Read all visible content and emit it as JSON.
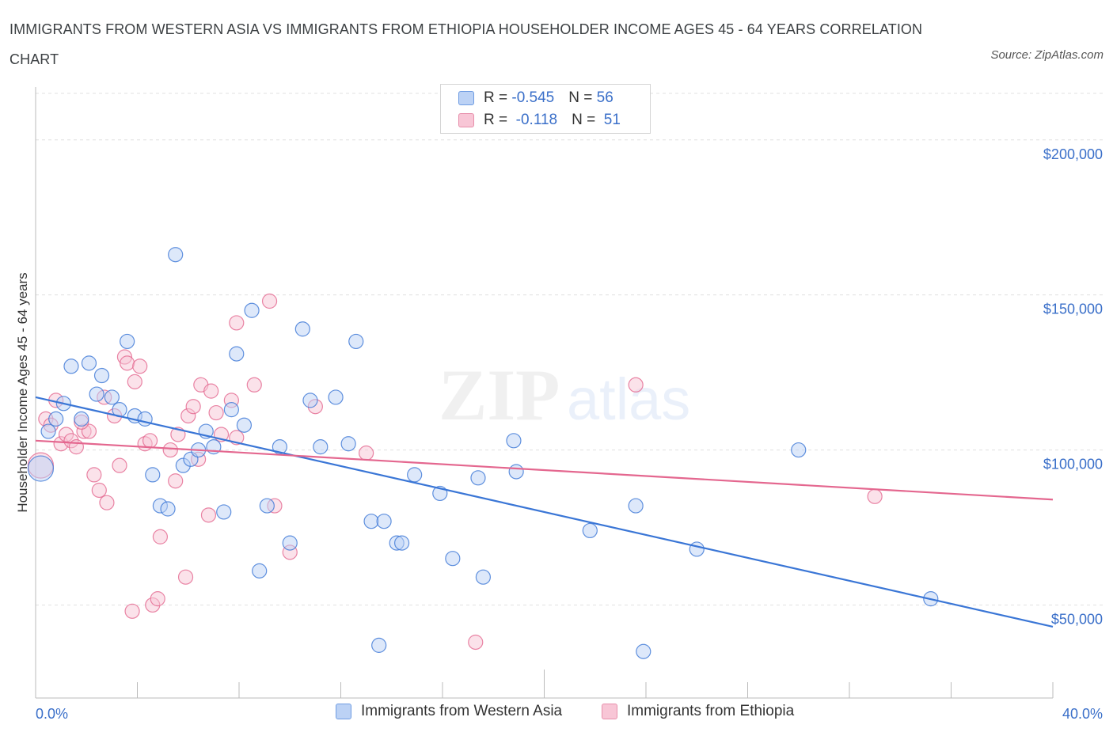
{
  "title": "IMMIGRANTS FROM WESTERN ASIA VS IMMIGRANTS FROM ETHIOPIA HOUSEHOLDER INCOME AGES 45 - 64 YEARS CORRELATION CHART",
  "source": "Source: ZipAtlas.com",
  "legend": {
    "rows": [
      {
        "r_label": "R = ",
        "r_value": "-0.545",
        "n_label": "N = ",
        "n_value": "56"
      },
      {
        "r_label": "R = ",
        "r_value": " -0.118",
        "n_label": "N = ",
        "n_value": " 51"
      }
    ]
  },
  "colors": {
    "blue": "#3a76d6",
    "blue_fill": "#bcd2f5",
    "pink": "#e4678f",
    "pink_fill": "#f8c6d6",
    "axis_text": "#3a6fc9"
  },
  "chart_data": {
    "type": "scatter",
    "xlabel": "",
    "ylabel": "Householder Income Ages 45 - 64 years",
    "xlim": [
      0,
      40
    ],
    "ylim": [
      20000,
      215000
    ],
    "x_tick_labels": [
      "0.0%",
      "40.0%"
    ],
    "y_ticks": [
      {
        "value": 50000,
        "label": "$50,000"
      },
      {
        "value": 100000,
        "label": "$100,000"
      },
      {
        "value": 150000,
        "label": "$150,000"
      },
      {
        "value": 200000,
        "label": "$200,000"
      }
    ],
    "grid": true,
    "legend_position": "bottom",
    "series": [
      {
        "name": "Immigrants from Western Asia",
        "color": "#3a76d6",
        "trend": {
          "x": [
            0,
            40
          ],
          "y": [
            117000,
            43000
          ]
        },
        "points": [
          [
            0.2,
            94000
          ],
          [
            0.5,
            106000
          ],
          [
            0.8,
            110000
          ],
          [
            1.1,
            115000
          ],
          [
            1.4,
            127000
          ],
          [
            1.8,
            110000
          ],
          [
            2.1,
            128000
          ],
          [
            2.4,
            118000
          ],
          [
            2.6,
            124000
          ],
          [
            3.0,
            117000
          ],
          [
            3.3,
            113000
          ],
          [
            3.6,
            135000
          ],
          [
            3.9,
            111000
          ],
          [
            4.3,
            110000
          ],
          [
            4.6,
            92000
          ],
          [
            4.9,
            82000
          ],
          [
            5.2,
            81000
          ],
          [
            5.5,
            163000
          ],
          [
            5.8,
            95000
          ],
          [
            6.1,
            97000
          ],
          [
            6.4,
            100000
          ],
          [
            6.7,
            106000
          ],
          [
            7.0,
            101000
          ],
          [
            7.4,
            80000
          ],
          [
            7.7,
            113000
          ],
          [
            7.9,
            131000
          ],
          [
            8.2,
            108000
          ],
          [
            8.5,
            145000
          ],
          [
            8.8,
            61000
          ],
          [
            9.1,
            82000
          ],
          [
            9.6,
            101000
          ],
          [
            10.0,
            70000
          ],
          [
            10.5,
            139000
          ],
          [
            10.8,
            116000
          ],
          [
            11.2,
            101000
          ],
          [
            11.8,
            117000
          ],
          [
            12.3,
            102000
          ],
          [
            12.6,
            135000
          ],
          [
            13.2,
            77000
          ],
          [
            13.5,
            37000
          ],
          [
            13.7,
            77000
          ],
          [
            14.2,
            70000
          ],
          [
            14.4,
            70000
          ],
          [
            14.9,
            92000
          ],
          [
            15.9,
            86000
          ],
          [
            16.4,
            65000
          ],
          [
            17.4,
            91000
          ],
          [
            17.6,
            59000
          ],
          [
            18.8,
            103000
          ],
          [
            18.9,
            93000
          ],
          [
            21.8,
            74000
          ],
          [
            23.6,
            82000
          ],
          [
            23.9,
            35000
          ],
          [
            26.0,
            68000
          ],
          [
            30.0,
            100000
          ],
          [
            35.2,
            52000
          ]
        ]
      },
      {
        "name": "Immigrants from Ethiopia",
        "color": "#e4678f",
        "trend": {
          "x": [
            0,
            40
          ],
          "y": [
            103000,
            84000
          ]
        },
        "points": [
          [
            0.2,
            95000
          ],
          [
            0.4,
            110000
          ],
          [
            0.6,
            108000
          ],
          [
            0.8,
            116000
          ],
          [
            1.0,
            102000
          ],
          [
            1.2,
            105000
          ],
          [
            1.4,
            103000
          ],
          [
            1.6,
            101000
          ],
          [
            1.9,
            106000
          ],
          [
            2.1,
            106000
          ],
          [
            2.3,
            92000
          ],
          [
            2.5,
            87000
          ],
          [
            2.7,
            117000
          ],
          [
            2.8,
            83000
          ],
          [
            3.1,
            111000
          ],
          [
            3.3,
            95000
          ],
          [
            3.5,
            130000
          ],
          [
            3.6,
            128000
          ],
          [
            3.8,
            48000
          ],
          [
            3.9,
            122000
          ],
          [
            4.1,
            127000
          ],
          [
            4.3,
            102000
          ],
          [
            4.5,
            103000
          ],
          [
            4.6,
            50000
          ],
          [
            4.8,
            52000
          ],
          [
            4.9,
            72000
          ],
          [
            5.3,
            100000
          ],
          [
            5.5,
            90000
          ],
          [
            5.6,
            105000
          ],
          [
            5.9,
            59000
          ],
          [
            6.0,
            111000
          ],
          [
            6.2,
            114000
          ],
          [
            6.4,
            97000
          ],
          [
            6.5,
            121000
          ],
          [
            6.8,
            79000
          ],
          [
            6.9,
            119000
          ],
          [
            7.1,
            112000
          ],
          [
            7.3,
            105000
          ],
          [
            7.7,
            116000
          ],
          [
            7.9,
            141000
          ],
          [
            7.9,
            104000
          ],
          [
            8.6,
            121000
          ],
          [
            9.2,
            148000
          ],
          [
            9.4,
            82000
          ],
          [
            10.0,
            67000
          ],
          [
            11.0,
            114000
          ],
          [
            13.0,
            99000
          ],
          [
            17.3,
            38000
          ],
          [
            23.6,
            121000
          ],
          [
            33.0,
            85000
          ],
          [
            1.8,
            109000
          ]
        ]
      }
    ]
  }
}
